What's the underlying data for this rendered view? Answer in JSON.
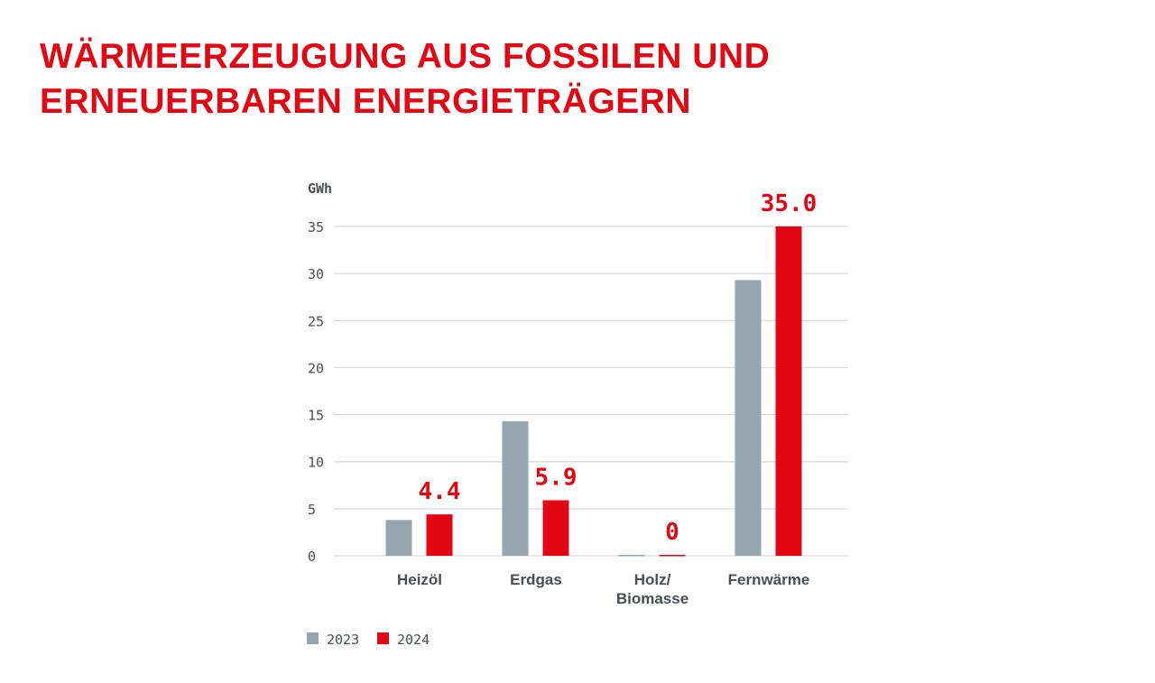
{
  "title_lines": [
    "WÄRMEERZEUGUNG AUS FOSSILEN UND",
    "ERNEUERBAREN ENERGIETRÄGERN"
  ],
  "chart_data": {
    "type": "bar",
    "title": "WÄRMEERZEUGUNG AUS FOSSILEN UND ERNEUERBAREN ENERGIETRÄGERN",
    "ylabel": "GWh",
    "xlabel": "",
    "ylim": [
      0,
      35
    ],
    "yticks": [
      0,
      5,
      10,
      15,
      20,
      25,
      30,
      35
    ],
    "grid": true,
    "legend_position": "bottom-left",
    "categories": [
      [
        "Heizöl"
      ],
      [
        "Erdgas"
      ],
      [
        "Holz/",
        "Biomasse"
      ],
      [
        "Fernwärme"
      ]
    ],
    "series": [
      {
        "name": "2023",
        "color": "#97a5ae",
        "values": [
          3.8,
          14.3,
          0.1,
          29.3
        ],
        "labels": null
      },
      {
        "name": "2024",
        "color": "#e30613",
        "values": [
          4.4,
          5.9,
          0.1,
          35.0
        ],
        "labels": [
          "4.4",
          "5.9",
          "0",
          "35.0"
        ]
      }
    ]
  },
  "colors": {
    "accent": "#e30613",
    "grey": "#97a5ae",
    "grid": "#d6dadf",
    "text": "#4a4f54"
  }
}
